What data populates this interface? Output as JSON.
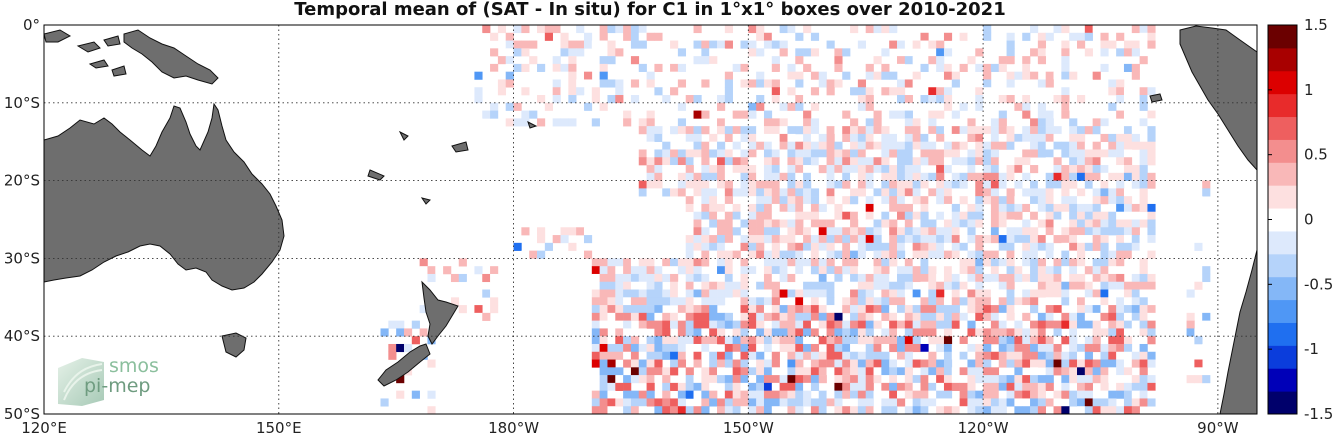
{
  "title": "Temporal mean of (SAT - In situ) for C1 in 1°x1° boxes over 2010-2021",
  "map": {
    "lon_range": [
      120,
      275
    ],
    "lat_range": [
      -50,
      0
    ],
    "gridlines": "dotted",
    "land_color": "#6e6e6e",
    "ocean_color": "#ffffff"
  },
  "lon_ticks": [
    {
      "lon": 120,
      "label": "120°E"
    },
    {
      "lon": 150,
      "label": "150°E"
    },
    {
      "lon": 180,
      "label": "180°W"
    },
    {
      "lon": 210,
      "label": "150°W"
    },
    {
      "lon": 240,
      "label": "120°W"
    },
    {
      "lon": 270,
      "label": "90°W"
    }
  ],
  "lat_ticks": [
    {
      "lat": 0,
      "label": "0°"
    },
    {
      "lat": -10,
      "label": "10°S"
    },
    {
      "lat": -20,
      "label": "20°S"
    },
    {
      "lat": -30,
      "label": "30°S"
    },
    {
      "lat": -40,
      "label": "40°S"
    },
    {
      "lat": -50,
      "label": "50°S"
    }
  ],
  "colorbar": {
    "min": -1.5,
    "max": 1.5,
    "ticks": [
      {
        "value": 1.5,
        "label": "1.5"
      },
      {
        "value": 1,
        "label": "1"
      },
      {
        "value": 0.5,
        "label": "0.5"
      },
      {
        "value": 0,
        "label": "0"
      },
      {
        "value": -0.5,
        "label": "-0.5"
      },
      {
        "value": -1,
        "label": "-1"
      },
      {
        "value": -1.5,
        "label": "-1.5"
      }
    ],
    "colormap": [
      "#00006b",
      "#0000b8",
      "#0b3ddc",
      "#1f6ff0",
      "#4f97f5",
      "#84b7f7",
      "#b5d3fa",
      "#dde9fc",
      "#ffffff",
      "#fde0e0",
      "#f9b8b8",
      "#f38e8e",
      "#ee5f5f",
      "#e82b2b",
      "#dc0000",
      "#a80000",
      "#6b0000"
    ]
  },
  "logo": {
    "line1": "smos",
    "line2": "pi-mep"
  }
}
